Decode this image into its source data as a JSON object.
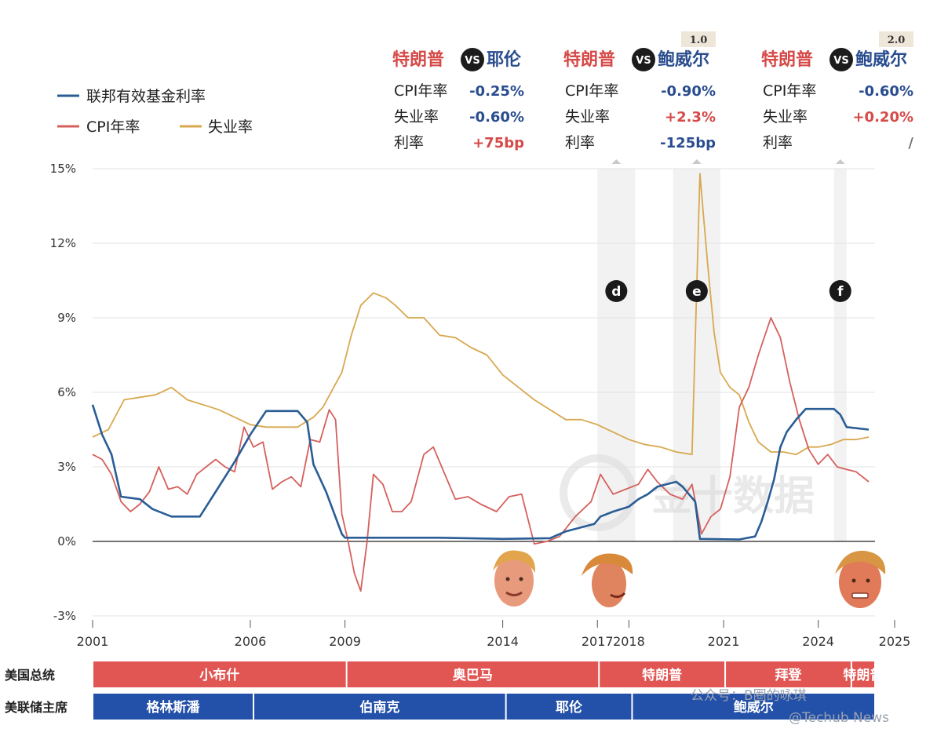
{
  "chart_data": {
    "type": "line",
    "legend": [
      "联邦有效基金利率",
      "CPI年率",
      "失业率"
    ],
    "colors": {
      "fed": "#2a5d96",
      "cpi": "#d5605c",
      "unemp": "#d8a84f",
      "red": "#d64a48",
      "blue": "#2a4d8f",
      "presBar": "#e15553",
      "chairBar": "#2350a8"
    },
    "y_ticks": [
      "15%",
      "12%",
      "9%",
      "6%",
      "3%",
      "0%",
      "-3%"
    ],
    "ylim": [
      -3,
      15
    ],
    "xlim": [
      2001,
      2025.8
    ],
    "x_ticks": [
      "2001",
      "2006",
      "2009",
      "2014",
      "2017",
      "2018",
      "2021",
      "2024",
      "2025"
    ],
    "series": [
      {
        "name": "联邦有效基金利率",
        "key": "fed",
        "x": [
          2001.0,
          2001.3,
          2001.6,
          2001.9,
          2002.5,
          2002.9,
          2003.5,
          2004.4,
          2004.8,
          2005.5,
          2006.0,
          2006.5,
          2007.5,
          2007.8,
          2008.0,
          2008.4,
          2008.9,
          2009.0,
          2010.0,
          2012.0,
          2014.0,
          2015.5,
          2015.9,
          2016.0,
          2016.9,
          2017.1,
          2017.5,
          2018.0,
          2018.3,
          2018.6,
          2018.9,
          2019.5,
          2019.7,
          2019.9,
          2020.1,
          2020.25,
          2021.5,
          2022.0,
          2022.2,
          2022.4,
          2022.6,
          2022.8,
          2023.0,
          2023.3,
          2023.6,
          2024.5,
          2024.7,
          2024.9,
          2025.6
        ],
        "y": [
          5.5,
          4.3,
          3.5,
          1.8,
          1.7,
          1.3,
          1.0,
          1.0,
          1.8,
          3.2,
          4.3,
          5.25,
          5.25,
          4.8,
          3.1,
          2.0,
          0.3,
          0.15,
          0.15,
          0.15,
          0.1,
          0.13,
          0.35,
          0.4,
          0.7,
          1.0,
          1.2,
          1.4,
          1.7,
          1.9,
          2.2,
          2.4,
          2.2,
          1.9,
          1.6,
          0.1,
          0.08,
          0.2,
          0.8,
          1.6,
          2.5,
          3.8,
          4.4,
          4.9,
          5.33,
          5.33,
          5.1,
          4.6,
          4.5
        ]
      },
      {
        "name": "CPI年率",
        "key": "cpi",
        "x": [
          2001.0,
          2001.3,
          2001.6,
          2001.9,
          2002.2,
          2002.5,
          2002.8,
          2003.1,
          2003.4,
          2003.7,
          2004.0,
          2004.3,
          2004.6,
          2004.9,
          2005.2,
          2005.5,
          2005.8,
          2006.1,
          2006.4,
          2006.7,
          2007.0,
          2007.3,
          2007.6,
          2007.9,
          2008.2,
          2008.5,
          2008.7,
          2008.9,
          2009.1,
          2009.3,
          2009.5,
          2009.7,
          2009.9,
          2010.2,
          2010.5,
          2010.8,
          2011.1,
          2011.5,
          2011.8,
          2012.1,
          2012.5,
          2012.9,
          2013.3,
          2013.8,
          2014.2,
          2014.6,
          2015.0,
          2015.4,
          2015.8,
          2016.3,
          2016.8,
          2017.1,
          2017.5,
          2017.9,
          2018.3,
          2018.6,
          2018.9,
          2019.3,
          2019.7,
          2020.0,
          2020.3,
          2020.6,
          2020.9,
          2021.2,
          2021.5,
          2021.8,
          2022.1,
          2022.5,
          2022.8,
          2023.1,
          2023.4,
          2023.7,
          2024.0,
          2024.3,
          2024.6,
          2024.9,
          2025.2,
          2025.6
        ],
        "y": [
          3.5,
          3.3,
          2.7,
          1.6,
          1.2,
          1.5,
          2.0,
          3.0,
          2.1,
          2.2,
          1.9,
          2.7,
          3.0,
          3.3,
          3.0,
          2.8,
          4.6,
          3.8,
          4.0,
          2.1,
          2.4,
          2.6,
          2.2,
          4.1,
          4.0,
          5.3,
          4.9,
          1.1,
          0.0,
          -1.3,
          -2.0,
          0.0,
          2.7,
          2.3,
          1.2,
          1.2,
          1.6,
          3.5,
          3.8,
          2.9,
          1.7,
          1.8,
          1.5,
          1.2,
          1.8,
          1.9,
          -0.1,
          0.0,
          0.2,
          1.0,
          1.6,
          2.7,
          1.9,
          2.1,
          2.3,
          2.9,
          2.4,
          1.9,
          1.7,
          2.3,
          0.3,
          1.0,
          1.3,
          2.6,
          5.4,
          6.2,
          7.5,
          9.0,
          8.2,
          6.4,
          4.9,
          3.7,
          3.1,
          3.5,
          3.0,
          2.9,
          2.8,
          2.4
        ]
      },
      {
        "name": "失业率",
        "key": "unemp",
        "x": [
          2001.0,
          2001.5,
          2002.0,
          2002.5,
          2003.0,
          2003.5,
          2004.0,
          2004.5,
          2005.0,
          2005.5,
          2006.0,
          2006.5,
          2007.0,
          2007.5,
          2008.0,
          2008.3,
          2008.6,
          2008.9,
          2009.2,
          2009.5,
          2009.9,
          2010.3,
          2010.6,
          2011.0,
          2011.5,
          2012.0,
          2012.5,
          2013.0,
          2013.5,
          2014.0,
          2014.5,
          2015.0,
          2015.5,
          2016.0,
          2016.5,
          2017.0,
          2017.5,
          2018.0,
          2018.5,
          2019.0,
          2019.5,
          2020.0,
          2020.25,
          2020.35,
          2020.5,
          2020.7,
          2020.9,
          2021.2,
          2021.5,
          2021.8,
          2022.1,
          2022.5,
          2022.9,
          2023.3,
          2023.7,
          2024.0,
          2024.4,
          2024.8,
          2025.2,
          2025.6
        ],
        "y": [
          4.2,
          4.5,
          5.7,
          5.8,
          5.9,
          6.2,
          5.7,
          5.5,
          5.3,
          5.0,
          4.7,
          4.6,
          4.6,
          4.6,
          5.0,
          5.4,
          6.1,
          6.8,
          8.3,
          9.5,
          10.0,
          9.8,
          9.5,
          9.0,
          9.0,
          8.3,
          8.2,
          7.8,
          7.5,
          6.7,
          6.2,
          5.7,
          5.3,
          4.9,
          4.9,
          4.7,
          4.4,
          4.1,
          3.9,
          3.8,
          3.6,
          3.5,
          14.8,
          13.3,
          11.1,
          8.4,
          6.8,
          6.2,
          5.9,
          4.8,
          4.0,
          3.6,
          3.6,
          3.5,
          3.8,
          3.8,
          3.9,
          4.1,
          4.1,
          4.2
        ]
      }
    ],
    "periods": [
      {
        "marker": "d",
        "start": 2017.0,
        "end": 2018.2
      },
      {
        "marker": "e",
        "start": 2019.4,
        "end": 2020.9
      },
      {
        "marker": "f",
        "start": 2024.5,
        "end": 2024.9
      }
    ]
  },
  "panels": [
    {
      "left": "特朗普",
      "vs": "VS",
      "right": "耶伦",
      "badge": "",
      "rows": [
        {
          "label": "CPI年率",
          "value": "-0.25%",
          "color": "blue"
        },
        {
          "label": "失业率",
          "value": "-0.60%",
          "color": "blue"
        },
        {
          "label": "利率",
          "value": "+75bp",
          "color": "red"
        }
      ]
    },
    {
      "left": "特朗普",
      "vs": "VS",
      "right": "鲍威尔",
      "badge": "1.0",
      "rows": [
        {
          "label": "CPI年率",
          "value": "-0.90%",
          "color": "blue"
        },
        {
          "label": "失业率",
          "value": "+2.3%",
          "color": "red"
        },
        {
          "label": "利率",
          "value": "-125bp",
          "color": "blue"
        }
      ]
    },
    {
      "left": "特朗普",
      "vs": "VS",
      "right": "鲍威尔",
      "badge": "2.0",
      "rows": [
        {
          "label": "CPI年率",
          "value": "-0.60%",
          "color": "blue"
        },
        {
          "label": "失业率",
          "value": "+0.20%",
          "color": "red"
        },
        {
          "label": "利率",
          "value": "/",
          "color": "gray"
        }
      ]
    }
  ],
  "timeline": {
    "row1_label": "美国总统",
    "row2_label": "美联储主席",
    "presidents": [
      {
        "name": "小布什",
        "start": 2001.0,
        "end": 2009.05
      },
      {
        "name": "奥巴马",
        "start": 2009.05,
        "end": 2017.05
      },
      {
        "name": "特朗普",
        "start": 2017.05,
        "end": 2021.05
      },
      {
        "name": "拜登",
        "start": 2021.05,
        "end": 2025.05
      },
      {
        "name": "特朗普",
        "start": 2025.05,
        "end": 2025.8
      }
    ],
    "chairs": [
      {
        "name": "格林斯潘",
        "start": 2001.0,
        "end": 2006.1
      },
      {
        "name": "伯南克",
        "start": 2006.1,
        "end": 2014.1
      },
      {
        "name": "耶伦",
        "start": 2014.1,
        "end": 2018.1
      },
      {
        "name": "鲍威尔",
        "start": 2018.1,
        "end": 2025.8
      }
    ]
  },
  "watermark": "金十数据",
  "credits": {
    "line1": "公众号：B圈的咏琪",
    "line2": "@Techub News"
  }
}
